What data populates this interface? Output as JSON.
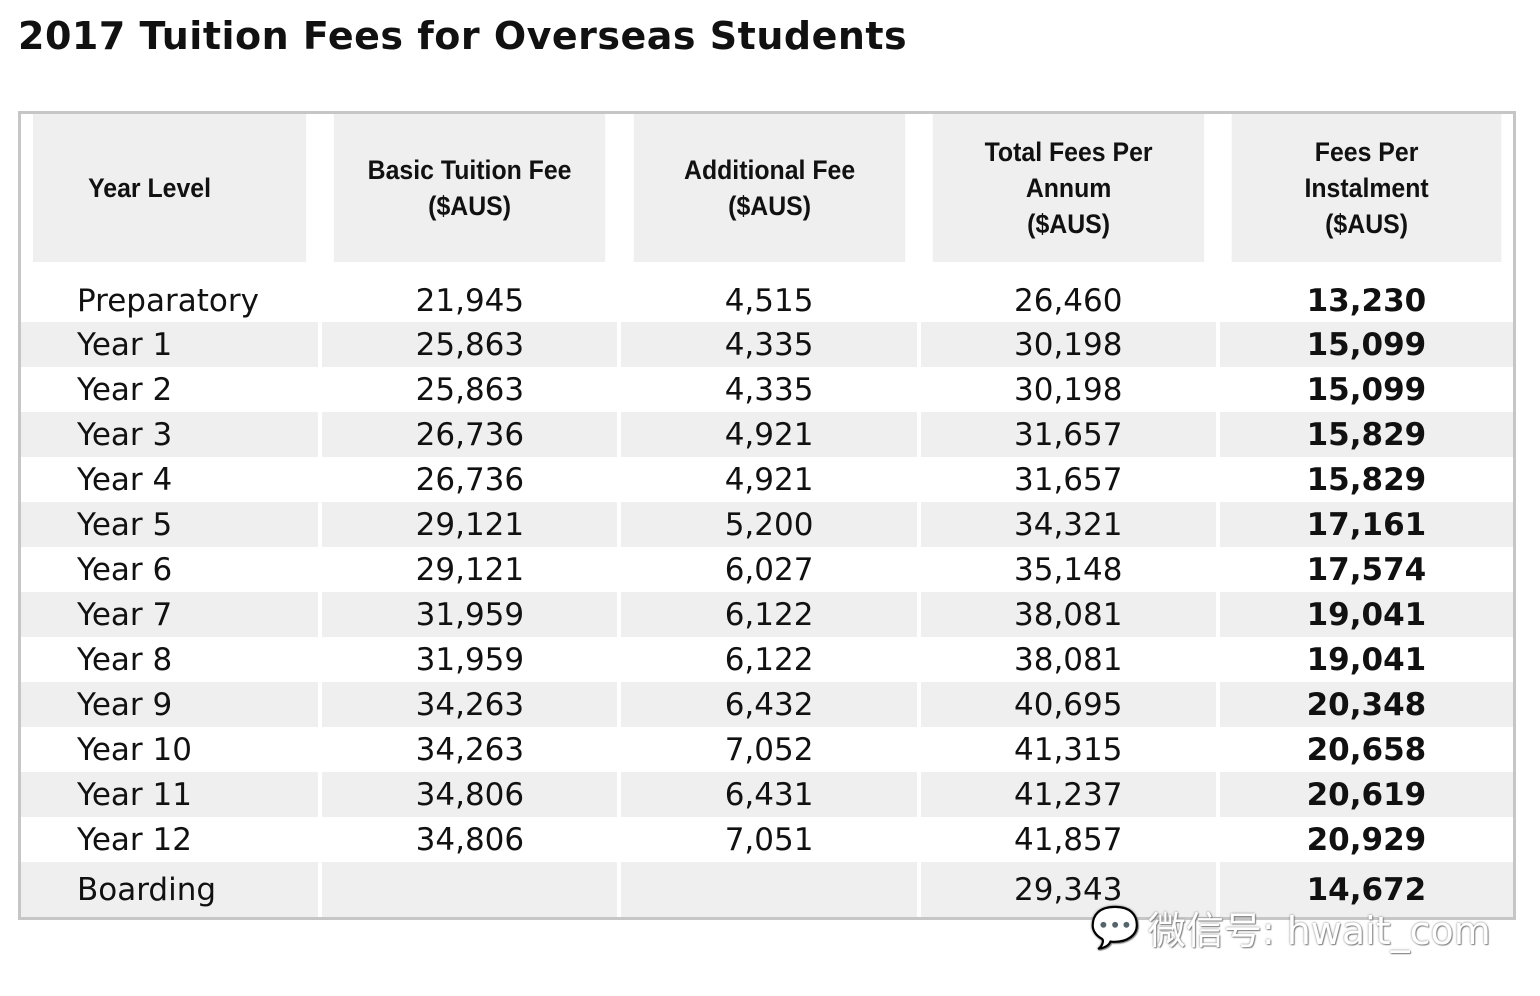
{
  "title": "2017 Tuition Fees for Overseas Students",
  "headers": [
    "Year Level",
    "Basic Tuition Fee\n($AUS)",
    "Additional Fee\n($AUS)",
    "Total Fees Per\nAnnum\n($AUS)",
    "Fees Per\nInstalment\n($AUS)"
  ],
  "rows": [
    [
      "Preparatory",
      "21,945",
      "4,515",
      "26,460",
      "13,230"
    ],
    [
      "Year 1",
      "25,863",
      "4,335",
      "30,198",
      "15,099"
    ],
    [
      "Year 2",
      "25,863",
      "4,335",
      "30,198",
      "15,099"
    ],
    [
      "Year 3",
      "26,736",
      "4,921",
      "31,657",
      "15,829"
    ],
    [
      "Year 4",
      "26,736",
      "4,921",
      "31,657",
      "15,829"
    ],
    [
      "Year 5",
      "29,121",
      "5,200",
      "34,321",
      "17,161"
    ],
    [
      "Year 6",
      "29,121",
      "6,027",
      "35,148",
      "17,574"
    ],
    [
      "Year 7",
      "31,959",
      "6,122",
      "38,081",
      "19,041"
    ],
    [
      "Year 8",
      "31,959",
      "6,122",
      "38,081",
      "19,041"
    ],
    [
      "Year 9",
      "34,263",
      "6,432",
      "40,695",
      "20,348"
    ],
    [
      "Year 10",
      "34,263",
      "7,052",
      "41,315",
      "20,658"
    ],
    [
      "Year 11",
      "34,806",
      "6,431",
      "41,237",
      "20,619"
    ],
    [
      "Year 12",
      "34,806",
      "7,051",
      "41,857",
      "20,929"
    ],
    [
      "Boarding",
      "",
      "",
      "29,343",
      "14,672"
    ]
  ],
  "watermark": {
    "icon": "wechat-icon",
    "text": "微信号: hwait_com"
  }
}
